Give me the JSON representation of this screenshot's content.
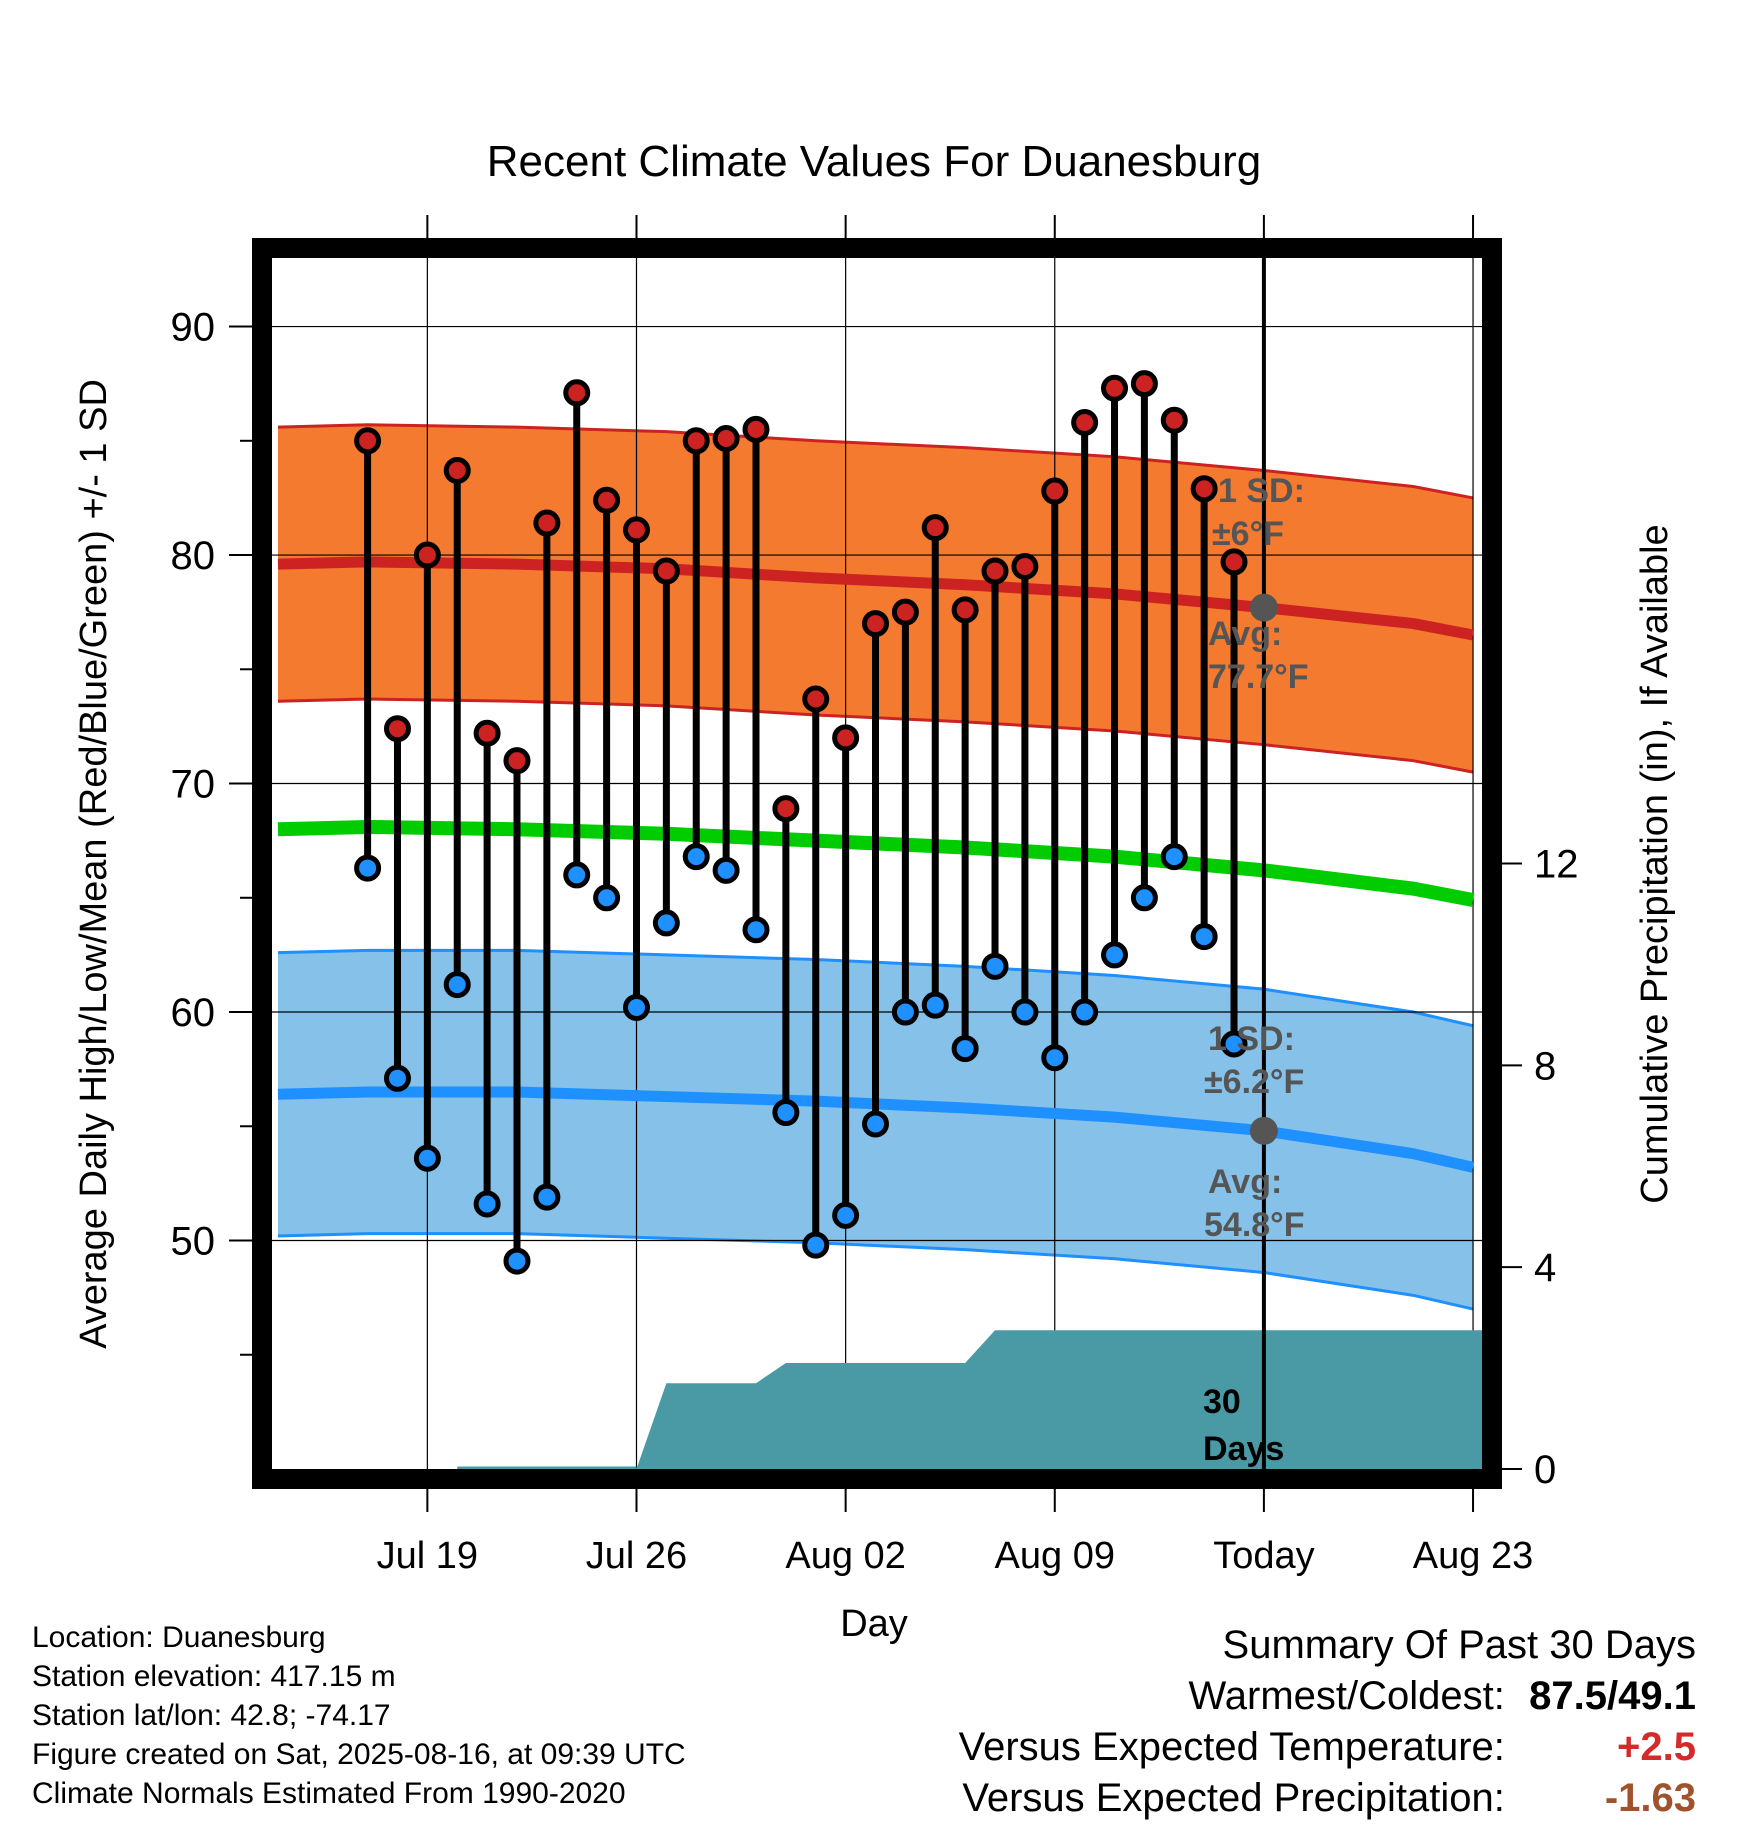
{
  "chart_data": {
    "type": "line",
    "title": "Recent Climate Values For Duanesburg",
    "xlabel": "Day",
    "ylabel": "Average Daily High/Low/Mean (Red/Blue/Green) +/- 1 SD",
    "y2label": "Cumulative Precipitation (in), If Available",
    "ylim": [
      40,
      93
    ],
    "y2lim": [
      0,
      24
    ],
    "y_ticks": [
      "50",
      "60",
      "70",
      "80",
      "90"
    ],
    "y2_ticks": [
      "0",
      "4",
      "8",
      "12"
    ],
    "x_tick_labels": [
      "Jul 19",
      "Jul 26",
      "Aug 02",
      "Aug 09",
      "Today",
      "Aug 23"
    ],
    "x_range_days": [
      -33.2,
      7.3
    ],
    "x_tick_days": [
      -28,
      -21,
      -14,
      -7,
      0,
      7
    ],
    "grid": true,
    "daily": {
      "days": [
        -30,
        -29,
        -28,
        -27,
        -26,
        -25,
        -24,
        -23,
        -22,
        -21,
        -20,
        -19,
        -18,
        -17,
        -16,
        -15,
        -14,
        -13,
        -12,
        -11,
        -10,
        -9,
        -8,
        -7,
        -6,
        -5,
        -4,
        -3,
        -2,
        -1
      ],
      "high": [
        85.0,
        72.4,
        80.0,
        83.7,
        72.2,
        71.0,
        81.4,
        87.1,
        82.4,
        81.1,
        79.3,
        85.0,
        85.1,
        85.5,
        68.9,
        73.7,
        72.0,
        77.0,
        77.5,
        81.2,
        77.6,
        79.3,
        79.5,
        82.8,
        85.8,
        87.3,
        87.5,
        85.9,
        82.9,
        79.7
      ],
      "low": [
        66.3,
        57.1,
        53.6,
        61.2,
        51.6,
        49.1,
        51.9,
        66.0,
        65.0,
        60.2,
        63.9,
        66.8,
        66.2,
        63.6,
        55.6,
        49.8,
        51.1,
        55.1,
        60.0,
        60.3,
        58.4,
        62.0,
        60.0,
        58.0,
        60.0,
        62.5,
        65.0,
        66.8,
        63.3,
        58.6
      ]
    },
    "normals": {
      "days": [
        -33,
        -30,
        -25,
        -20,
        -15,
        -10,
        -5,
        0,
        5,
        7
      ],
      "high_mean": [
        79.6,
        79.7,
        79.6,
        79.4,
        79.0,
        78.7,
        78.3,
        77.7,
        77.0,
        76.5
      ],
      "low_mean": [
        56.4,
        56.5,
        56.5,
        56.3,
        56.1,
        55.8,
        55.4,
        54.8,
        53.8,
        53.2
      ],
      "daily_mean": [
        68.0,
        68.1,
        68.0,
        67.8,
        67.5,
        67.2,
        66.8,
        66.2,
        65.4,
        64.9
      ],
      "high_sd": 6.0,
      "low_sd": 6.2
    },
    "precip": {
      "days": [
        -33,
        -27,
        -21,
        -20,
        -17,
        -16,
        -10,
        -9,
        -6,
        7.3
      ],
      "cumulative_in": [
        0,
        0,
        0,
        1.7,
        1.7,
        2.1,
        2.1,
        2.75,
        2.75,
        2.75
      ]
    },
    "annotations": {
      "high_sd_label": "1 SD:",
      "high_sd_value": "±6°F",
      "high_avg_label": "Avg:",
      "high_avg_value": "77.7°F",
      "low_sd_label": "1 SD:",
      "low_sd_value": "±6.2°F",
      "low_avg_label": "Avg:",
      "low_avg_value": "54.8°F",
      "period_number": "30",
      "period_unit": "Days"
    },
    "colors": {
      "high": "#cc2222",
      "high_band": "#f47a30",
      "low": "#1e90ff",
      "low_band": "#85c1e8",
      "mean": "#00cc00",
      "precip": "#4a9aa5",
      "today_marker": "#555555"
    }
  },
  "info": {
    "location": "Location: Duanesburg",
    "elevation": "Station elevation: 417.15 m",
    "latlon": "Station lat/lon: 42.8; -74.17",
    "created": "Figure created on Sat, 2025-08-16, at 09:39 UTC",
    "normals": "Climate Normals Estimated From 1990-2020"
  },
  "summary": {
    "heading": "Summary Of Past 30 Days",
    "warmest_label": "Warmest/Coldest:",
    "warmest_value": "87.5/49.1",
    "temp_label": "Versus Expected Temperature:",
    "temp_value": "+2.5",
    "precip_label": "Versus Expected Precipitation:",
    "precip_value": "-1.63"
  }
}
